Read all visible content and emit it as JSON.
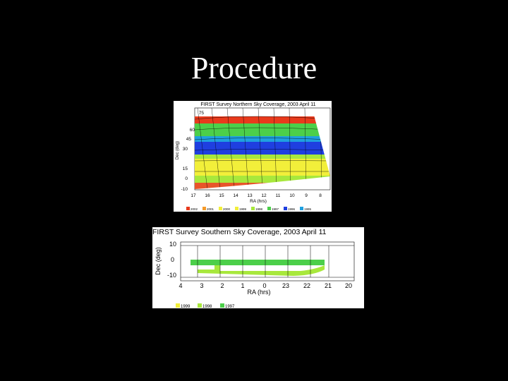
{
  "slide": {
    "title": "Procedure"
  },
  "north_map": {
    "title": "FIRST Survey Northern Sky Coverage, 2003 April 11",
    "xlabel": "RA (hrs)",
    "ylabel": "Dec (deg)",
    "x_ticks": [
      "17",
      "16",
      "15",
      "14",
      "13",
      "12",
      "11",
      "10",
      "9",
      "8"
    ],
    "y_ticks": [
      "75",
      "60",
      "45",
      "30",
      "15",
      "0",
      "-10"
    ],
    "legend": [
      {
        "label": "2002",
        "color": "#e83a1c"
      },
      {
        "label": "2001",
        "color": "#f59a2a"
      },
      {
        "label": "2000",
        "color": "#f2ef3a"
      },
      {
        "label": "1999",
        "color": "#f2ef3a"
      },
      {
        "label": "1998",
        "color": "#a8e83c"
      },
      {
        "label": "1997",
        "color": "#4ccf4a"
      },
      {
        "label": "1996",
        "color": "#1f3fe0"
      },
      {
        "label": "1995",
        "color": "#1fa0e0"
      }
    ]
  },
  "south_map": {
    "title": "FIRST Survey Southern Sky Coverage, 2003 April 11",
    "xlabel": "RA (hrs)",
    "ylabel": "Dec (deg)",
    "x_ticks": [
      "4",
      "3",
      "2",
      "1",
      "0",
      "23",
      "22",
      "21",
      "20"
    ],
    "y_ticks": [
      "10",
      "0",
      "-10"
    ],
    "legend": [
      {
        "label": "1999",
        "color": "#f2ef3a"
      },
      {
        "label": "1998",
        "color": "#a8e83c"
      },
      {
        "label": "1997",
        "color": "#4ccf4a"
      }
    ]
  }
}
